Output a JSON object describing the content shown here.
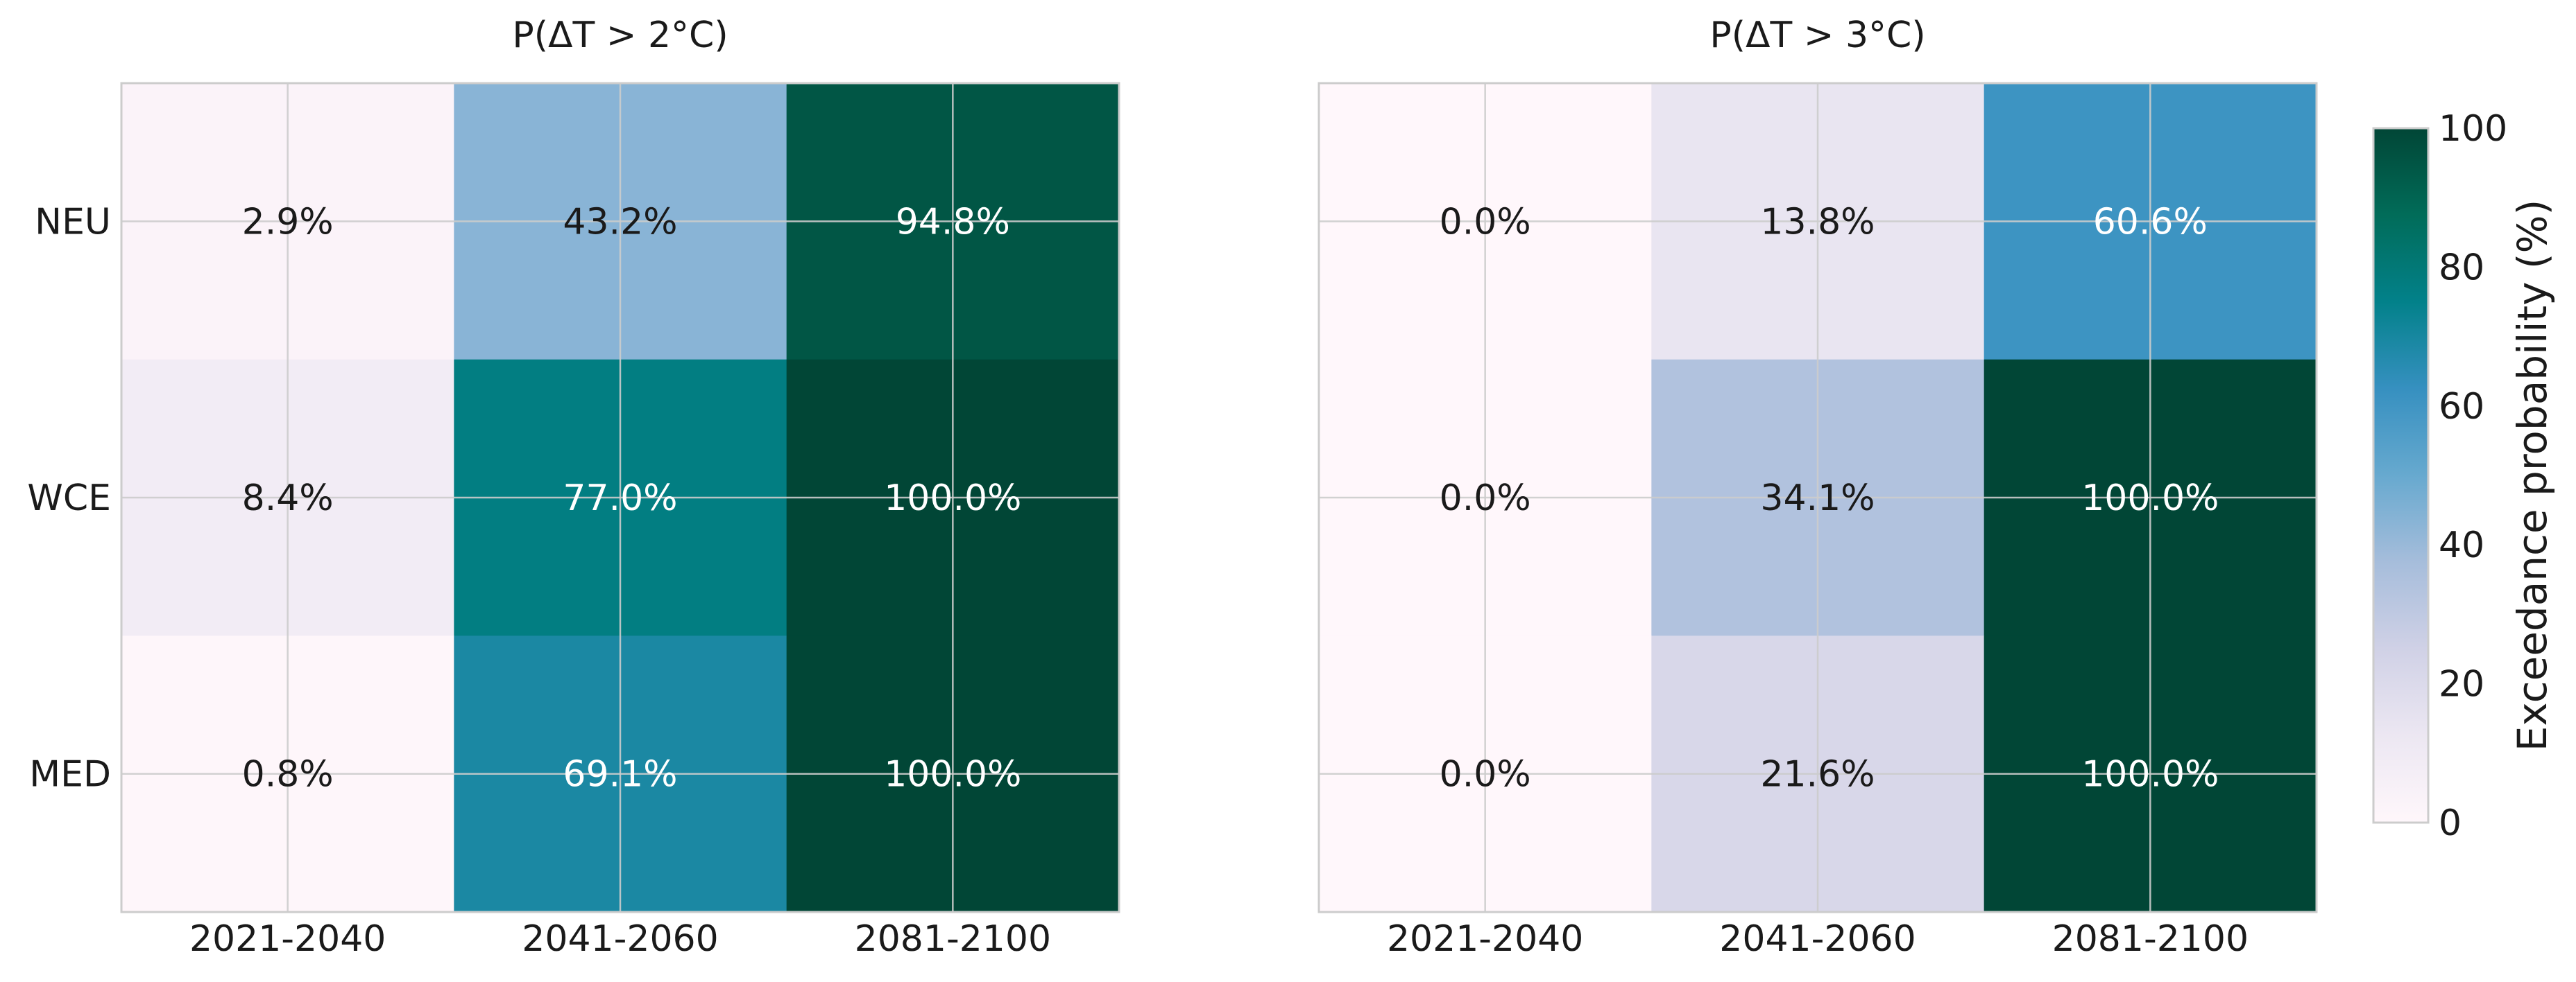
{
  "chart_data": [
    {
      "type": "heatmap",
      "title": "P(ΔT > 2°C)",
      "x_categories": [
        "2021-2040",
        "2041-2060",
        "2081-2100"
      ],
      "y_categories": [
        "NEU",
        "WCE",
        "MED"
      ],
      "values": [
        [
          2.9,
          43.2,
          94.8
        ],
        [
          8.4,
          77.0,
          100.0
        ],
        [
          0.8,
          69.1,
          100.0
        ]
      ],
      "value_labels": [
        [
          "2.9%",
          "43.2%",
          "94.8%"
        ],
        [
          "8.4%",
          "77.0%",
          "100.0%"
        ],
        [
          "0.8%",
          "69.1%",
          "100.0%"
        ]
      ],
      "grid": true
    },
    {
      "type": "heatmap",
      "title": "P(ΔT > 3°C)",
      "x_categories": [
        "2021-2040",
        "2041-2060",
        "2081-2100"
      ],
      "y_categories": [
        "NEU",
        "WCE",
        "MED"
      ],
      "values": [
        [
          0.0,
          13.8,
          60.6
        ],
        [
          0.0,
          34.1,
          100.0
        ],
        [
          0.0,
          21.6,
          100.0
        ]
      ],
      "value_labels": [
        [
          "0.0%",
          "13.8%",
          "60.6%"
        ],
        [
          "0.0%",
          "34.1%",
          "100.0%"
        ],
        [
          "0.0%",
          "21.6%",
          "100.0%"
        ]
      ],
      "grid": true
    }
  ],
  "colorbar": {
    "label": "Exceedance probability (%)",
    "range": [
      0,
      100
    ],
    "ticks": [
      "0",
      "20",
      "40",
      "60",
      "80",
      "100"
    ],
    "colormap": "PuBuGn",
    "colors": [
      "#fff7fb",
      "#ece7f2",
      "#d0d1e6",
      "#a6bddb",
      "#67a9cf",
      "#3690c0",
      "#02818a",
      "#016c59",
      "#014636"
    ]
  }
}
